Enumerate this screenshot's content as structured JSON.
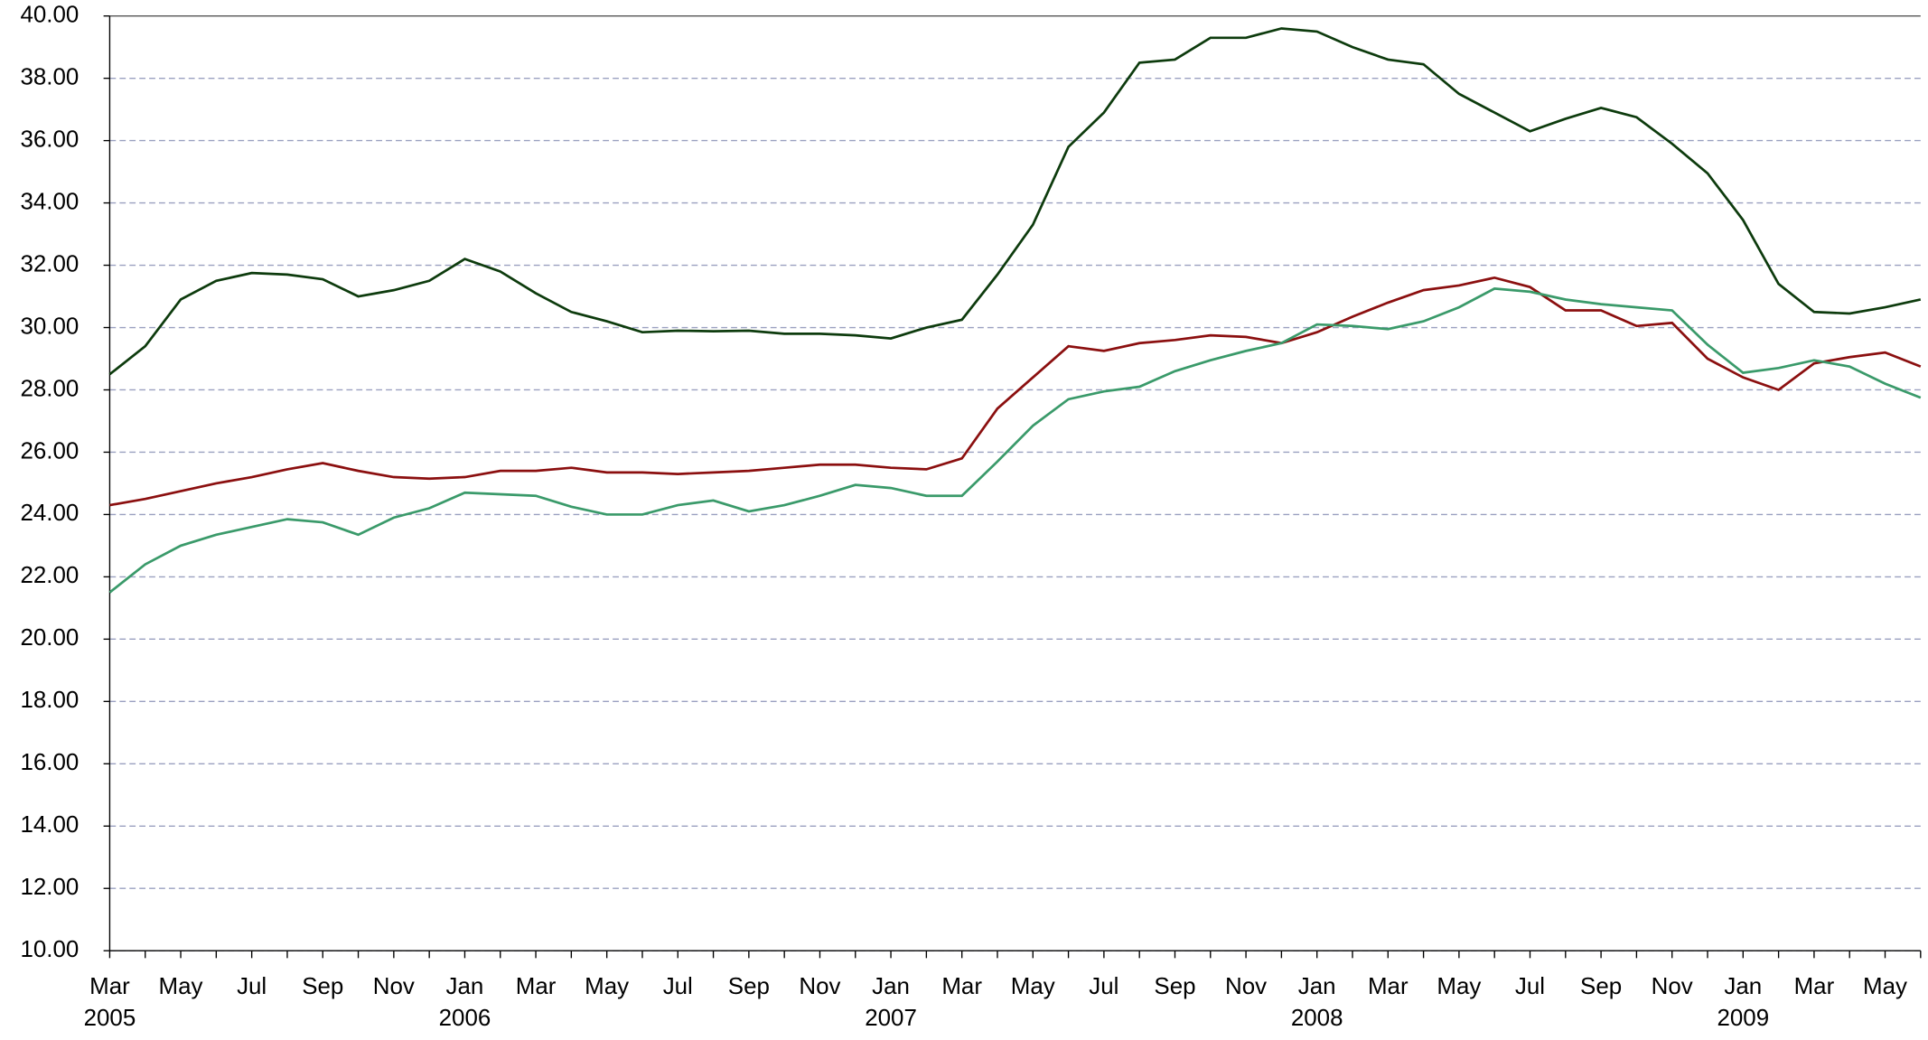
{
  "chart_data": {
    "type": "line",
    "categories": [
      "Mar",
      null,
      "May",
      null,
      "Jul",
      null,
      "Sep",
      null,
      "Nov",
      null,
      "Jan",
      null,
      "Mar",
      null,
      "May",
      null,
      "Jul",
      null,
      "Sep",
      null,
      "Nov",
      null,
      "Jan",
      null,
      "Mar",
      null,
      "May",
      null,
      "Jul",
      null,
      "Sep",
      null,
      "Nov",
      null,
      "Jan",
      null,
      "Mar",
      null,
      "May",
      null,
      "Jul",
      null,
      "Sep",
      null,
      "Nov",
      null,
      "Jan",
      null,
      "Mar",
      null,
      "May",
      null
    ],
    "years": [
      "2005",
      null,
      null,
      null,
      null,
      null,
      null,
      null,
      null,
      null,
      "2006",
      null,
      null,
      null,
      null,
      null,
      null,
      null,
      null,
      null,
      null,
      null,
      "2007",
      null,
      null,
      null,
      null,
      null,
      null,
      null,
      null,
      null,
      null,
      null,
      "2008",
      null,
      null,
      null,
      null,
      null,
      null,
      null,
      null,
      null,
      null,
      null,
      "2009",
      null,
      null,
      null,
      null,
      null
    ],
    "series": [
      {
        "color": "#0d3b0d",
        "values": [
          28.5,
          29.4,
          30.9,
          31.5,
          31.75,
          31.7,
          31.55,
          31.0,
          31.2,
          31.5,
          32.2,
          31.8,
          31.1,
          30.5,
          30.2,
          29.85,
          29.9,
          29.88,
          29.9,
          29.8,
          29.8,
          29.75,
          29.65,
          30.0,
          30.25,
          31.7,
          33.3,
          35.8,
          36.9,
          38.5,
          38.6,
          39.3,
          39.3,
          39.6,
          39.5,
          39.0,
          38.6,
          38.45,
          37.5,
          36.9,
          36.3,
          36.7,
          37.05,
          36.75,
          35.9,
          34.95,
          33.45,
          31.4,
          30.5,
          30.45,
          30.65,
          30.9
        ]
      },
      {
        "color": "#8b0f0f",
        "values": [
          24.3,
          24.5,
          24.75,
          25.0,
          25.2,
          25.45,
          25.65,
          25.4,
          25.2,
          25.15,
          25.2,
          25.4,
          25.4,
          25.5,
          25.35,
          25.35,
          25.3,
          25.35,
          25.4,
          25.5,
          25.6,
          25.6,
          25.5,
          25.45,
          25.8,
          27.4,
          28.4,
          29.4,
          29.25,
          29.5,
          29.6,
          29.75,
          29.7,
          29.5,
          29.85,
          30.35,
          30.8,
          31.2,
          31.35,
          31.6,
          31.3,
          30.55,
          30.55,
          30.05,
          30.15,
          29.0,
          28.4,
          28.0,
          28.85,
          29.05,
          29.2,
          28.75
        ]
      },
      {
        "color": "#3a9a6a",
        "values": [
          21.5,
          22.4,
          23.0,
          23.35,
          23.6,
          23.85,
          23.75,
          23.35,
          23.9,
          24.2,
          24.7,
          24.65,
          24.6,
          24.25,
          24.0,
          24.0,
          24.3,
          24.45,
          24.1,
          24.3,
          24.6,
          24.95,
          24.85,
          24.6,
          24.6,
          25.7,
          26.85,
          27.7,
          27.95,
          28.1,
          28.6,
          28.95,
          29.25,
          29.5,
          30.1,
          30.05,
          29.95,
          30.2,
          30.65,
          31.25,
          31.15,
          30.9,
          30.75,
          30.65,
          30.55,
          29.45,
          28.55,
          28.7,
          28.95,
          28.75,
          28.2,
          27.75
        ]
      }
    ],
    "ylim": [
      10,
      40
    ],
    "yticks": [
      {
        "value": 10,
        "label": "10.00"
      },
      {
        "value": 12,
        "label": "12.00"
      },
      {
        "value": 14,
        "label": "14.00"
      },
      {
        "value": 16,
        "label": "16.00"
      },
      {
        "value": 18,
        "label": "18.00"
      },
      {
        "value": 20,
        "label": "20.00"
      },
      {
        "value": 22,
        "label": "22.00"
      },
      {
        "value": 24,
        "label": "24.00"
      },
      {
        "value": 26,
        "label": "26.00"
      },
      {
        "value": 28,
        "label": "28.00"
      },
      {
        "value": 30,
        "label": "30.00"
      },
      {
        "value": 32,
        "label": "32.00"
      },
      {
        "value": 34,
        "label": "34.00"
      },
      {
        "value": 36,
        "label": "36.00"
      },
      {
        "value": 38,
        "label": "38.00"
      },
      {
        "value": 40,
        "label": "40.00"
      }
    ],
    "grid": true
  }
}
